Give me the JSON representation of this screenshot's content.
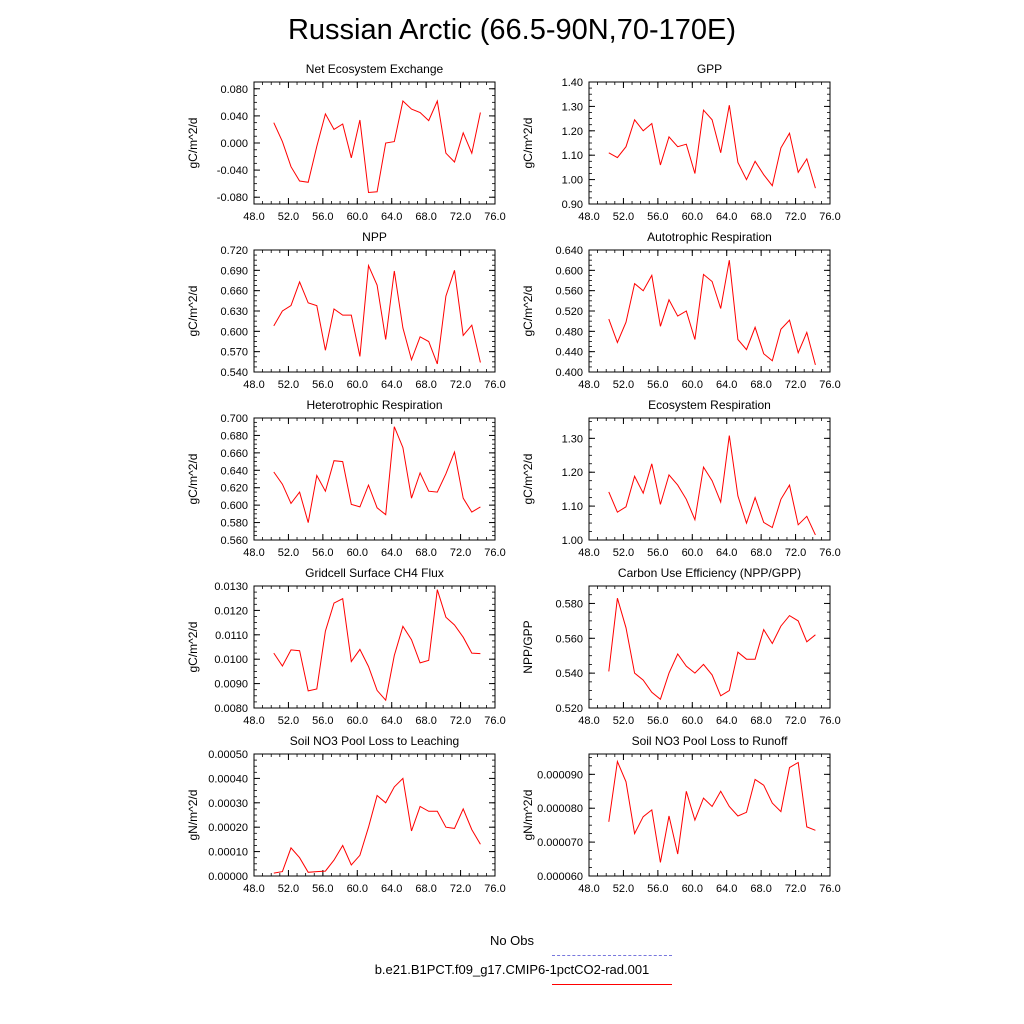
{
  "title": "Russian Arctic (66.5-90N,70-170E)",
  "legend": {
    "obs_label": "No Obs",
    "model_label": "b.e21.B1PCT.f09_g17.CMIP6-1pctCO2-rad.001",
    "obs_color": "#7777dd",
    "model_color": "#ff0000"
  },
  "chart_data": [
    {
      "type": "line",
      "title": "Net Ecosystem Exchange",
      "ylabel": "gC/m^2/d",
      "xlim": [
        48,
        76
      ],
      "ylim": [
        -0.09,
        0.09
      ],
      "xticks": [
        "48.0",
        "52.0",
        "56.0",
        "60.0",
        "64.0",
        "68.0",
        "72.0",
        "76.0"
      ],
      "yticks": [
        "-0.080",
        "-0.040",
        "0.000",
        "0.040",
        "0.080"
      ],
      "ytick_values": [
        -0.08,
        -0.04,
        0,
        0.04,
        0.08
      ],
      "x": [
        50.3,
        51.3,
        52.3,
        53.3,
        54.3,
        55.3,
        56.3,
        57.3,
        58.3,
        59.3,
        60.3,
        61.3,
        62.3,
        63.3,
        64.3,
        65.3,
        66.3,
        67.3,
        68.3,
        69.3,
        70.3,
        71.3,
        72.3,
        73.3,
        74.3
      ],
      "series": [
        {
          "values": [
            0.03,
            0.002,
            -0.035,
            -0.056,
            -0.058,
            -0.005,
            0.043,
            0.02,
            0.028,
            -0.022,
            0.034,
            -0.073,
            -0.072,
            0.0,
            0.002,
            0.062,
            0.05,
            0.045,
            0.033,
            0.062,
            -0.015,
            -0.028,
            0.015,
            -0.015,
            0.045
          ]
        }
      ]
    },
    {
      "type": "line",
      "title": "GPP",
      "ylabel": "gC/m^2/d",
      "xlim": [
        48,
        76
      ],
      "ylim": [
        0.9,
        1.4
      ],
      "xticks": [
        "48.0",
        "52.0",
        "56.0",
        "60.0",
        "64.0",
        "68.0",
        "72.0",
        "76.0"
      ],
      "yticks": [
        "0.90",
        "1.00",
        "1.10",
        "1.20",
        "1.30",
        "1.40"
      ],
      "ytick_values": [
        0.9,
        1.0,
        1.1,
        1.2,
        1.3,
        1.4
      ],
      "x": [
        50.3,
        51.3,
        52.3,
        53.3,
        54.3,
        55.3,
        56.3,
        57.3,
        58.3,
        59.3,
        60.3,
        61.3,
        62.3,
        63.3,
        64.3,
        65.3,
        66.3,
        67.3,
        68.3,
        69.3,
        70.3,
        71.3,
        72.3,
        73.3,
        74.3
      ],
      "series": [
        {
          "values": [
            1.11,
            1.09,
            1.135,
            1.245,
            1.2,
            1.23,
            1.06,
            1.175,
            1.135,
            1.145,
            1.025,
            1.285,
            1.245,
            1.11,
            1.305,
            1.07,
            1.0,
            1.075,
            1.02,
            0.975,
            1.13,
            1.19,
            1.03,
            1.085,
            0.965
          ]
        }
      ]
    },
    {
      "type": "line",
      "title": "NPP",
      "ylabel": "gC/m^2/d",
      "xlim": [
        48,
        76
      ],
      "ylim": [
        0.54,
        0.72
      ],
      "xticks": [
        "48.0",
        "52.0",
        "56.0",
        "60.0",
        "64.0",
        "68.0",
        "72.0",
        "76.0"
      ],
      "yticks": [
        "0.540",
        "0.570",
        "0.600",
        "0.630",
        "0.660",
        "0.690",
        "0.720"
      ],
      "ytick_values": [
        0.54,
        0.57,
        0.6,
        0.63,
        0.66,
        0.69,
        0.72
      ],
      "x": [
        50.3,
        51.3,
        52.3,
        53.3,
        54.3,
        55.3,
        56.3,
        57.3,
        58.3,
        59.3,
        60.3,
        61.3,
        62.3,
        63.3,
        64.3,
        65.3,
        66.3,
        67.3,
        68.3,
        69.3,
        70.3,
        71.3,
        72.3,
        73.3,
        74.3
      ],
      "series": [
        {
          "values": [
            0.608,
            0.63,
            0.638,
            0.673,
            0.642,
            0.638,
            0.572,
            0.633,
            0.624,
            0.624,
            0.563,
            0.697,
            0.668,
            0.588,
            0.689,
            0.605,
            0.558,
            0.592,
            0.585,
            0.552,
            0.652,
            0.69,
            0.594,
            0.609,
            0.554
          ]
        }
      ]
    },
    {
      "type": "line",
      "title": "Autotrophic Respiration",
      "ylabel": "gC/m^2/d",
      "xlim": [
        48,
        76
      ],
      "ylim": [
        0.4,
        0.64
      ],
      "xticks": [
        "48.0",
        "52.0",
        "56.0",
        "60.0",
        "64.0",
        "68.0",
        "72.0",
        "76.0"
      ],
      "yticks": [
        "0.400",
        "0.440",
        "0.480",
        "0.520",
        "0.560",
        "0.600",
        "0.640"
      ],
      "ytick_values": [
        0.4,
        0.44,
        0.48,
        0.52,
        0.56,
        0.6,
        0.64
      ],
      "x": [
        50.3,
        51.3,
        52.3,
        53.3,
        54.3,
        55.3,
        56.3,
        57.3,
        58.3,
        59.3,
        60.3,
        61.3,
        62.3,
        63.3,
        64.3,
        65.3,
        66.3,
        67.3,
        68.3,
        69.3,
        70.3,
        71.3,
        72.3,
        73.3,
        74.3
      ],
      "series": [
        {
          "values": [
            0.504,
            0.458,
            0.498,
            0.574,
            0.56,
            0.59,
            0.49,
            0.542,
            0.51,
            0.52,
            0.464,
            0.592,
            0.578,
            0.525,
            0.62,
            0.464,
            0.444,
            0.488,
            0.436,
            0.422,
            0.484,
            0.502,
            0.438,
            0.478,
            0.414
          ]
        }
      ]
    },
    {
      "type": "line",
      "title": "Heterotrophic Respiration",
      "ylabel": "gC/m^2/d",
      "xlim": [
        48,
        76
      ],
      "ylim": [
        0.56,
        0.7
      ],
      "xticks": [
        "48.0",
        "52.0",
        "56.0",
        "60.0",
        "64.0",
        "68.0",
        "72.0",
        "76.0"
      ],
      "yticks": [
        "0.560",
        "0.580",
        "0.600",
        "0.620",
        "0.640",
        "0.660",
        "0.680",
        "0.700"
      ],
      "ytick_values": [
        0.56,
        0.58,
        0.6,
        0.62,
        0.64,
        0.66,
        0.68,
        0.7
      ],
      "x": [
        50.3,
        51.3,
        52.3,
        53.3,
        54.3,
        55.3,
        56.3,
        57.3,
        58.3,
        59.3,
        60.3,
        61.3,
        62.3,
        63.3,
        64.3,
        65.3,
        66.3,
        67.3,
        68.3,
        69.3,
        70.3,
        71.3,
        72.3,
        73.3,
        74.3
      ],
      "series": [
        {
          "values": [
            0.638,
            0.624,
            0.602,
            0.615,
            0.58,
            0.634,
            0.616,
            0.651,
            0.65,
            0.601,
            0.598,
            0.623,
            0.597,
            0.589,
            0.69,
            0.666,
            0.608,
            0.637,
            0.616,
            0.615,
            0.636,
            0.661,
            0.608,
            0.592,
            0.598
          ]
        }
      ]
    },
    {
      "type": "line",
      "title": "Ecosystem Respiration",
      "ylabel": "gC/m^2/d",
      "xlim": [
        48,
        76
      ],
      "ylim": [
        1.0,
        1.36
      ],
      "xticks": [
        "48.0",
        "52.0",
        "56.0",
        "60.0",
        "64.0",
        "68.0",
        "72.0",
        "76.0"
      ],
      "yticks": [
        "1.00",
        "1.10",
        "1.20",
        "1.30"
      ],
      "ytick_values": [
        1.0,
        1.1,
        1.2,
        1.3
      ],
      "x": [
        50.3,
        51.3,
        52.3,
        53.3,
        54.3,
        55.3,
        56.3,
        57.3,
        58.3,
        59.3,
        60.3,
        61.3,
        62.3,
        63.3,
        64.3,
        65.3,
        66.3,
        67.3,
        68.3,
        69.3,
        70.3,
        71.3,
        72.3,
        73.3,
        74.3
      ],
      "series": [
        {
          "values": [
            1.142,
            1.082,
            1.098,
            1.188,
            1.138,
            1.225,
            1.105,
            1.192,
            1.162,
            1.12,
            1.06,
            1.215,
            1.175,
            1.112,
            1.308,
            1.13,
            1.05,
            1.125,
            1.052,
            1.037,
            1.12,
            1.162,
            1.045,
            1.07,
            1.015
          ]
        }
      ]
    },
    {
      "type": "line",
      "title": "Gridcell Surface CH4 Flux",
      "ylabel": "gC/m^2/d",
      "xlim": [
        48,
        76
      ],
      "ylim": [
        0.008,
        0.013
      ],
      "xticks": [
        "48.0",
        "52.0",
        "56.0",
        "60.0",
        "64.0",
        "68.0",
        "72.0",
        "76.0"
      ],
      "yticks": [
        "0.0080",
        "0.0090",
        "0.0100",
        "0.0110",
        "0.0120",
        "0.0130"
      ],
      "ytick_values": [
        0.008,
        0.009,
        0.01,
        0.011,
        0.012,
        0.013
      ],
      "x": [
        50.3,
        51.3,
        52.3,
        53.3,
        54.3,
        55.3,
        56.3,
        57.3,
        58.3,
        59.3,
        60.3,
        61.3,
        62.3,
        63.3,
        64.3,
        65.3,
        66.3,
        67.3,
        68.3,
        69.3,
        70.3,
        71.3,
        72.3,
        73.3,
        74.3
      ],
      "series": [
        {
          "values": [
            0.01025,
            0.00972,
            0.01038,
            0.01035,
            0.0087,
            0.00878,
            0.01115,
            0.0123,
            0.01248,
            0.0099,
            0.0104,
            0.0097,
            0.00872,
            0.00832,
            0.01015,
            0.01135,
            0.0108,
            0.00985,
            0.00995,
            0.01285,
            0.01172,
            0.0114,
            0.0109,
            0.01025,
            0.01023
          ]
        }
      ]
    },
    {
      "type": "line",
      "title": "Carbon Use Efficiency (NPP/GPP)",
      "ylabel": "NPP/GPP",
      "xlim": [
        48,
        76
      ],
      "ylim": [
        0.52,
        0.59
      ],
      "xticks": [
        "48.0",
        "52.0",
        "56.0",
        "60.0",
        "64.0",
        "68.0",
        "72.0",
        "76.0"
      ],
      "yticks": [
        "0.520",
        "0.540",
        "0.560",
        "0.580"
      ],
      "ytick_values": [
        0.52,
        0.54,
        0.56,
        0.58
      ],
      "x": [
        50.3,
        51.3,
        52.3,
        53.3,
        54.3,
        55.3,
        56.3,
        57.3,
        58.3,
        59.3,
        60.3,
        61.3,
        62.3,
        63.3,
        64.3,
        65.3,
        66.3,
        67.3,
        68.3,
        69.3,
        70.3,
        71.3,
        72.3,
        73.3,
        74.3
      ],
      "series": [
        {
          "values": [
            0.541,
            0.583,
            0.566,
            0.54,
            0.536,
            0.529,
            0.525,
            0.54,
            0.551,
            0.544,
            0.54,
            0.545,
            0.539,
            0.527,
            0.53,
            0.552,
            0.548,
            0.548,
            0.565,
            0.557,
            0.567,
            0.573,
            0.57,
            0.558,
            0.562
          ]
        }
      ]
    },
    {
      "type": "line",
      "title": "Soil NO3 Pool Loss to Leaching",
      "ylabel": "gN/m^2/d",
      "xlim": [
        48,
        76
      ],
      "ylim": [
        0,
        0.0005
      ],
      "xticks": [
        "48.0",
        "52.0",
        "56.0",
        "60.0",
        "64.0",
        "68.0",
        "72.0",
        "76.0"
      ],
      "yticks": [
        "0.00000",
        "0.00010",
        "0.00020",
        "0.00030",
        "0.00040",
        "0.00050"
      ],
      "ytick_values": [
        0,
        0.0001,
        0.0002,
        0.0003,
        0.0004,
        0.0005
      ],
      "x": [
        50.3,
        51.3,
        52.3,
        53.3,
        54.3,
        55.3,
        56.3,
        57.3,
        58.3,
        59.3,
        60.3,
        61.3,
        62.3,
        63.3,
        64.3,
        65.3,
        66.3,
        67.3,
        68.3,
        69.3,
        70.3,
        71.3,
        72.3,
        73.3,
        74.3
      ],
      "series": [
        {
          "values": [
            1.2e-05,
            1.8e-05,
            0.000115,
            7.5e-05,
            1.5e-05,
            1.8e-05,
            2e-05,
            6.5e-05,
            0.000125,
            4.5e-05,
            8.5e-05,
            0.0002,
            0.00033,
            0.0003,
            0.000365,
            0.0004,
            0.000185,
            0.000285,
            0.000265,
            0.000265,
            0.0002,
            0.000195,
            0.000275,
            0.00019,
            0.00013
          ]
        }
      ]
    },
    {
      "type": "line",
      "title": "Soil NO3 Pool Loss to Runoff",
      "ylabel": "gN/m^2/d",
      "xlim": [
        48,
        76
      ],
      "ylim": [
        6e-05,
        9.6e-05
      ],
      "xticks": [
        "48.0",
        "52.0",
        "56.0",
        "60.0",
        "64.0",
        "68.0",
        "72.0",
        "76.0"
      ],
      "yticks": [
        "0.000060",
        "0.000070",
        "0.000080",
        "0.000090"
      ],
      "ytick_values": [
        6e-05,
        7e-05,
        8e-05,
        9e-05
      ],
      "x": [
        50.3,
        51.3,
        52.3,
        53.3,
        54.3,
        55.3,
        56.3,
        57.3,
        58.3,
        59.3,
        60.3,
        61.3,
        62.3,
        63.3,
        64.3,
        65.3,
        66.3,
        67.3,
        68.3,
        69.3,
        70.3,
        71.3,
        72.3,
        73.3,
        74.3
      ],
      "series": [
        {
          "values": [
            7.6e-05,
            9.38e-05,
            8.78e-05,
            7.25e-05,
            7.75e-05,
            7.95e-05,
            6.4e-05,
            7.77e-05,
            6.65e-05,
            8.5e-05,
            7.65e-05,
            8.3e-05,
            8.05e-05,
            8.5e-05,
            8.05e-05,
            7.77e-05,
            7.88e-05,
            8.85e-05,
            8.68e-05,
            8.15e-05,
            7.9e-05,
            9.2e-05,
            9.35e-05,
            7.45e-05,
            7.35e-05
          ]
        }
      ]
    }
  ]
}
